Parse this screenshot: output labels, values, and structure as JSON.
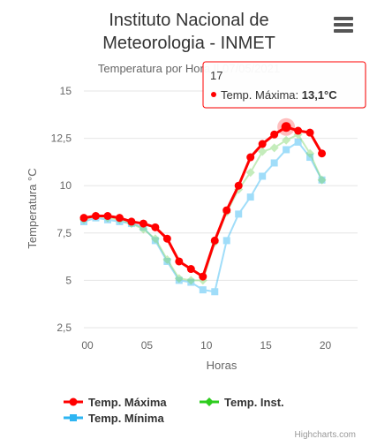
{
  "chart_data": {
    "type": "line",
    "title": "Instituto Nacional de Meteorologia - INMET",
    "title_lines": [
      "Instituto Nacional de",
      "Meteorologia - INMET"
    ],
    "subtitle": "Temperatura por Hora || 07/05/2021",
    "xlabel": "Horas",
    "ylabel": "Temperatura °C",
    "x": [
      0,
      1,
      2,
      3,
      4,
      5,
      6,
      7,
      8,
      9,
      10,
      11,
      12,
      13,
      14,
      15,
      16,
      17,
      18,
      19,
      20
    ],
    "xlim": [
      0,
      23
    ],
    "ylim": [
      2.5,
      15
    ],
    "x_ticks": [
      "00",
      "05",
      "10",
      "15",
      "20"
    ],
    "x_tick_values": [
      0,
      5,
      10,
      15,
      20
    ],
    "y_ticks": [
      "2,5",
      "5",
      "7,5",
      "10",
      "12,5",
      "15"
    ],
    "y_tick_values": [
      2.5,
      5,
      7.5,
      10,
      12.5,
      15
    ],
    "grid": true,
    "legend_position": "bottom-left",
    "series": [
      {
        "name": "Temp. Mínima",
        "color": "#2eb5f2",
        "values": [
          8.1,
          8.3,
          8.2,
          8.1,
          8.0,
          7.8,
          7.1,
          6.0,
          5.0,
          4.9,
          4.5,
          4.4,
          7.1,
          8.5,
          9.4,
          10.5,
          11.2,
          11.9,
          12.3,
          11.5,
          10.3
        ]
      },
      {
        "name": "Temp. Inst.",
        "color": "#7dd66a",
        "values": [
          8.2,
          8.4,
          8.3,
          8.2,
          8.0,
          7.7,
          7.2,
          6.1,
          5.1,
          5.0,
          5.0,
          7.0,
          8.6,
          9.8,
          10.7,
          11.8,
          12.0,
          12.4,
          12.7,
          11.7,
          10.3
        ]
      },
      {
        "name": "Temp. Máxima",
        "color": "#ff0000",
        "values": [
          8.3,
          8.4,
          8.4,
          8.3,
          8.1,
          8.0,
          7.8,
          7.2,
          6.0,
          5.6,
          5.2,
          7.1,
          8.7,
          10.0,
          11.5,
          12.2,
          12.7,
          13.1,
          12.9,
          12.8,
          11.7
        ]
      }
    ],
    "tooltip": {
      "x_label": "17",
      "series": "Temp. Máxima",
      "value_text": "13,1°C",
      "point_index": 17
    }
  },
  "legend": [
    {
      "label": "Temp. Máxima",
      "color": "#ff0000",
      "marker": "circle"
    },
    {
      "label": "Temp. Inst.",
      "color": "#2ecc1e",
      "marker": "diamond"
    },
    {
      "label": "Temp. Mínima",
      "color": "#2eb5f2",
      "marker": "square"
    }
  ],
  "credit": "Highcharts.com",
  "menu_icon": "hamburger-menu-icon"
}
